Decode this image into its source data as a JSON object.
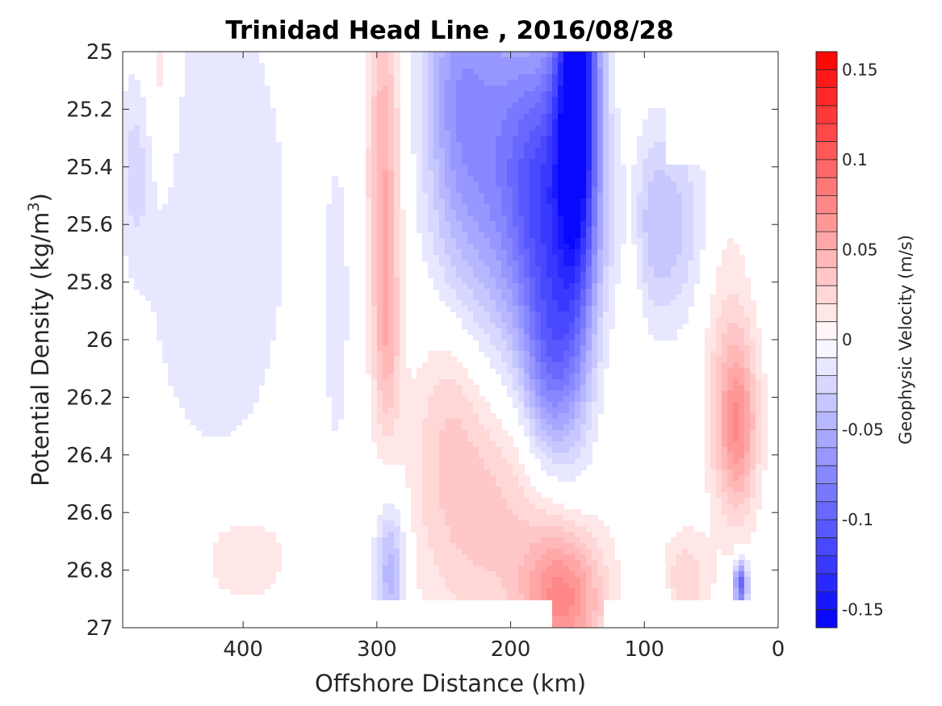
{
  "chart_data": {
    "type": "contourf",
    "title": "Trinidad Head Line , 2016/08/28",
    "xlabel": "Offshore Distance (km)",
    "ylabel_main": "Potential Density (kg/m",
    "ylabel_sup": "3",
    "ylabel_tail": ")",
    "xlim": [
      490,
      0
    ],
    "ylim": [
      25,
      27
    ],
    "x_reversed": true,
    "y_reversed": true,
    "x_ticks": [
      400,
      300,
      200,
      100,
      0
    ],
    "x_tick_labels": [
      "400",
      "300",
      "200",
      "100",
      "0"
    ],
    "y_ticks": [
      25,
      25.2,
      25.4,
      25.6,
      25.8,
      26,
      26.2,
      26.4,
      26.6,
      26.8,
      27
    ],
    "y_tick_labels": [
      "25",
      "25.2",
      "25.4",
      "25.6",
      "25.8",
      "26",
      "26.2",
      "26.4",
      "26.6",
      "26.8",
      "27"
    ],
    "colorbar": {
      "label": "Geophysic Velocity (m/s)",
      "clim": [
        -0.16,
        0.16
      ],
      "step": 0.01,
      "ticks": [
        0.15,
        0.1,
        0.05,
        0,
        -0.05,
        -0.1,
        -0.15
      ],
      "tick_labels": [
        "0.15",
        "0.1",
        "0.05",
        "0",
        "-0.05",
        "-0.1",
        "-0.15"
      ],
      "colormap": "blue-white-red",
      "color_min": "#0000ff",
      "color_zero": "#ffffff",
      "color_max": "#ff0000"
    },
    "features": [
      {
        "x": 150,
        "y": 25.0,
        "value": -0.16,
        "x_radius": 16,
        "y_radius": 0.9
      },
      {
        "x": 175,
        "y": 25.5,
        "value": -0.1,
        "x_radius": 30,
        "y_radius": 0.55
      },
      {
        "x": 220,
        "y": 25.3,
        "value": -0.06,
        "x_radius": 35,
        "y_radius": 0.7
      },
      {
        "x": 170,
        "y": 26.1,
        "value": -0.06,
        "x_radius": 20,
        "y_radius": 0.35
      },
      {
        "x": 245,
        "y": 25.1,
        "value": -0.03,
        "x_radius": 22,
        "y_radius": 0.55
      },
      {
        "x": 295,
        "y": 25.4,
        "value": 0.05,
        "x_radius": 12,
        "y_radius": 0.65
      },
      {
        "x": 292,
        "y": 26.0,
        "value": 0.03,
        "x_radius": 10,
        "y_radius": 0.35
      },
      {
        "x": 462,
        "y": 25.1,
        "value": 0.02,
        "x_radius": 12,
        "y_radius": 0.35
      },
      {
        "x": 420,
        "y": 25.6,
        "value": -0.02,
        "x_radius": 60,
        "y_radius": 0.9
      },
      {
        "x": 480,
        "y": 25.4,
        "value": -0.02,
        "x_radius": 12,
        "y_radius": 0.3
      },
      {
        "x": 330,
        "y": 25.9,
        "value": -0.015,
        "x_radius": 10,
        "y_radius": 0.6
      },
      {
        "x": 88,
        "y": 25.6,
        "value": -0.04,
        "x_radius": 35,
        "y_radius": 0.35
      },
      {
        "x": 110,
        "y": 25.75,
        "value": 0.02,
        "x_radius": 10,
        "y_radius": 0.5
      },
      {
        "x": 30,
        "y": 26.3,
        "value": 0.06,
        "x_radius": 15,
        "y_radius": 0.3
      },
      {
        "x": 40,
        "y": 26.0,
        "value": 0.02,
        "x_radius": 20,
        "y_radius": 0.6
      },
      {
        "x": 160,
        "y": 26.9,
        "value": 0.07,
        "x_radius": 30,
        "y_radius": 0.25
      },
      {
        "x": 220,
        "y": 26.6,
        "value": 0.035,
        "x_radius": 55,
        "y_radius": 0.45
      },
      {
        "x": 245,
        "y": 26.2,
        "value": 0.02,
        "x_radius": 25,
        "y_radius": 0.35
      },
      {
        "x": 290,
        "y": 26.8,
        "value": -0.05,
        "x_radius": 12,
        "y_radius": 0.25
      },
      {
        "x": 28,
        "y": 26.85,
        "value": -0.1,
        "x_radius": 5,
        "y_radius": 0.08
      },
      {
        "x": 400,
        "y": 26.75,
        "value": 0.02,
        "x_radius": 40,
        "y_radius": 0.2
      },
      {
        "x": 70,
        "y": 26.85,
        "value": 0.03,
        "x_radius": 18,
        "y_radius": 0.18
      },
      {
        "x": 90,
        "y": 26.95,
        "value": -0.02,
        "x_radius": 12,
        "y_radius": 0.12
      }
    ],
    "mask": [
      {
        "x_min": 0,
        "x_max": 50,
        "y_min": 25.0,
        "y_max": 25.5
      },
      {
        "x_min": 50,
        "x_max": 85,
        "y_min": 25.0,
        "y_max": 25.4
      },
      {
        "x_min": 0,
        "x_max": 130,
        "y_min": 26.9,
        "y_max": 27.0
      },
      {
        "x_min": 170,
        "x_max": 490,
        "y_min": 26.9,
        "y_max": 27.0
      }
    ]
  }
}
